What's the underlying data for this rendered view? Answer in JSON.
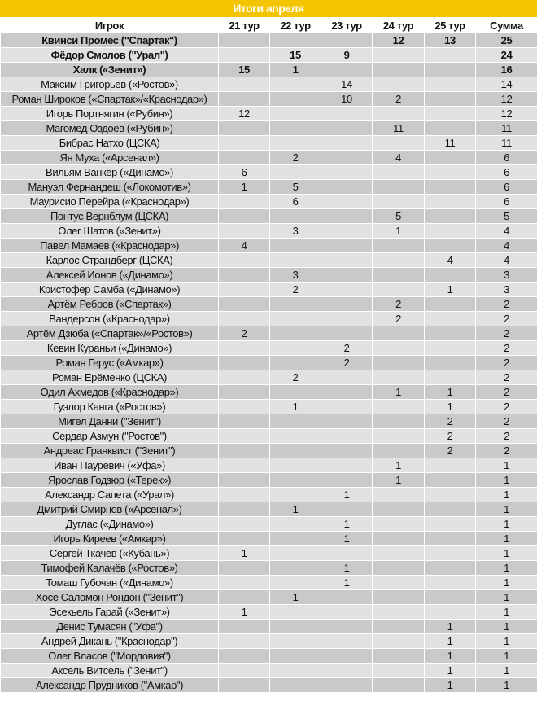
{
  "title": "Итоги апреля",
  "columns": [
    "Игрок",
    "21 тур",
    "22 тур",
    "23 тур",
    "24 тур",
    "25 тур",
    "Сумма"
  ],
  "rows": [
    {
      "player": "Квинси Промес (\"Спартак\")",
      "r21": "",
      "r22": "",
      "r23": "",
      "r24": "12",
      "r25": "13",
      "total": "25",
      "bold": true
    },
    {
      "player": "Фёдор Смолов (\"Урал\")",
      "r21": "",
      "r22": "15",
      "r23": "9",
      "r24": "",
      "r25": "",
      "total": "24",
      "bold": true
    },
    {
      "player": "Халк («Зенит»)",
      "r21": "15",
      "r22": "1",
      "r23": "",
      "r24": "",
      "r25": "",
      "total": "16",
      "bold": true
    },
    {
      "player": "Максим Григорьев («Ростов»)",
      "r21": "",
      "r22": "",
      "r23": "14",
      "r24": "",
      "r25": "",
      "total": "14"
    },
    {
      "player": "Роман Широков («Спартак»/«Краснодар»)",
      "r21": "",
      "r22": "",
      "r23": "10",
      "r24": "2",
      "r25": "",
      "total": "12"
    },
    {
      "player": "Игорь Портнягин («Рубин»)",
      "r21": "12",
      "r22": "",
      "r23": "",
      "r24": "",
      "r25": "",
      "total": "12"
    },
    {
      "player": "Магомед Оздоев («Рубин»)",
      "r21": "",
      "r22": "",
      "r23": "",
      "r24": "11",
      "r25": "",
      "total": "11"
    },
    {
      "player": "Бибрас Натхо (ЦСКА)",
      "r21": "",
      "r22": "",
      "r23": "",
      "r24": "",
      "r25": "11",
      "total": "11"
    },
    {
      "player": "Ян Муха («Арсенал»)",
      "r21": "",
      "r22": "2",
      "r23": "",
      "r24": "4",
      "r25": "",
      "total": "6"
    },
    {
      "player": "Вильям Ванкёр («Динамо»)",
      "r21": "6",
      "r22": "",
      "r23": "",
      "r24": "",
      "r25": "",
      "total": "6"
    },
    {
      "player": "Мануэл Фернандеш («Локомотив»)",
      "r21": "1",
      "r22": "5",
      "r23": "",
      "r24": "",
      "r25": "",
      "total": "6"
    },
    {
      "player": "Маурисио Перейра («Краснодар»)",
      "r21": "",
      "r22": "6",
      "r23": "",
      "r24": "",
      "r25": "",
      "total": "6"
    },
    {
      "player": "Понтус Вернблум (ЦСКА)",
      "r21": "",
      "r22": "",
      "r23": "",
      "r24": "5",
      "r25": "",
      "total": "5"
    },
    {
      "player": "Олег Шатов («Зенит»)",
      "r21": "",
      "r22": "3",
      "r23": "",
      "r24": "1",
      "r25": "",
      "total": "4"
    },
    {
      "player": "Павел Мамаев («Краснодар»)",
      "r21": "4",
      "r22": "",
      "r23": "",
      "r24": "",
      "r25": "",
      "total": "4"
    },
    {
      "player": "Карлос Страндберг (ЦСКА)",
      "r21": "",
      "r22": "",
      "r23": "",
      "r24": "",
      "r25": "4",
      "total": "4"
    },
    {
      "player": "Алексей Ионов («Динамо»)",
      "r21": "",
      "r22": "3",
      "r23": "",
      "r24": "",
      "r25": "",
      "total": "3"
    },
    {
      "player": "Кристофер Самба («Динамо»)",
      "r21": "",
      "r22": "2",
      "r23": "",
      "r24": "",
      "r25": "1",
      "total": "3"
    },
    {
      "player": "Артём Ребров («Спартак»)",
      "r21": "",
      "r22": "",
      "r23": "",
      "r24": "2",
      "r25": "",
      "total": "2"
    },
    {
      "player": "Вандерсон («Краснодар»)",
      "r21": "",
      "r22": "",
      "r23": "",
      "r24": "2",
      "r25": "",
      "total": "2"
    },
    {
      "player": "Артём Дзюба («Спартак»/«Ростов»)",
      "r21": "2",
      "r22": "",
      "r23": "",
      "r24": "",
      "r25": "",
      "total": "2"
    },
    {
      "player": "Кевин Кураньи («Динамо»)",
      "r21": "",
      "r22": "",
      "r23": "2",
      "r24": "",
      "r25": "",
      "total": "2"
    },
    {
      "player": "Роман Герус («Амкар»)",
      "r21": "",
      "r22": "",
      "r23": "2",
      "r24": "",
      "r25": "",
      "total": "2"
    },
    {
      "player": "Роман Ерёменко (ЦСКА)",
      "r21": "",
      "r22": "2",
      "r23": "",
      "r24": "",
      "r25": "",
      "total": "2"
    },
    {
      "player": "Одил Ахмедов («Краснодар»)",
      "r21": "",
      "r22": "",
      "r23": "",
      "r24": "1",
      "r25": "1",
      "total": "2"
    },
    {
      "player": "Гуэлор Канга («Ростов»)",
      "r21": "",
      "r22": "1",
      "r23": "",
      "r24": "",
      "r25": "1",
      "total": "2"
    },
    {
      "player": "Мигел Данни (\"Зенит\")",
      "r21": "",
      "r22": "",
      "r23": "",
      "r24": "",
      "r25": "2",
      "total": "2"
    },
    {
      "player": "Сердар Азмун (\"Ростов\")",
      "r21": "",
      "r22": "",
      "r23": "",
      "r24": "",
      "r25": "2",
      "total": "2"
    },
    {
      "player": "Андреас Гранквист (\"Зенит\")",
      "r21": "",
      "r22": "",
      "r23": "",
      "r24": "",
      "r25": "2",
      "total": "2"
    },
    {
      "player": "Иван Пауревич («Уфа»)",
      "r21": "",
      "r22": "",
      "r23": "",
      "r24": "1",
      "r25": "",
      "total": "1"
    },
    {
      "player": "Ярослав Годзюр («Терек»)",
      "r21": "",
      "r22": "",
      "r23": "",
      "r24": "1",
      "r25": "",
      "total": "1"
    },
    {
      "player": "Александр Сапета («Урал»)",
      "r21": "",
      "r22": "",
      "r23": "1",
      "r24": "",
      "r25": "",
      "total": "1"
    },
    {
      "player": "Дмитрий Смирнов («Арсенал»)",
      "r21": "",
      "r22": "1",
      "r23": "",
      "r24": "",
      "r25": "",
      "total": "1"
    },
    {
      "player": "Дуглас («Динамо»)",
      "r21": "",
      "r22": "",
      "r23": "1",
      "r24": "",
      "r25": "",
      "total": "1"
    },
    {
      "player": "Игорь Киреев («Амкар»)",
      "r21": "",
      "r22": "",
      "r23": "1",
      "r24": "",
      "r25": "",
      "total": "1"
    },
    {
      "player": "Сергей Ткачёв («Кубань»)",
      "r21": "1",
      "r22": "",
      "r23": "",
      "r24": "",
      "r25": "",
      "total": "1"
    },
    {
      "player": "Тимофей Калачёв («Ростов»)",
      "r21": "",
      "r22": "",
      "r23": "1",
      "r24": "",
      "r25": "",
      "total": "1"
    },
    {
      "player": "Томаш Губочан («Динамо»)",
      "r21": "",
      "r22": "",
      "r23": "1",
      "r24": "",
      "r25": "",
      "total": "1"
    },
    {
      "player": "Хосе Саломон Рондон (\"Зенит\")",
      "r21": "",
      "r22": "1",
      "r23": "",
      "r24": "",
      "r25": "",
      "total": "1"
    },
    {
      "player": "Эсекьель Гарай («Зенит»)",
      "r21": "1",
      "r22": "",
      "r23": "",
      "r24": "",
      "r25": "",
      "total": "1"
    },
    {
      "player": "Денис Тумасян (\"Уфа\")",
      "r21": "",
      "r22": "",
      "r23": "",
      "r24": "",
      "r25": "1",
      "total": "1"
    },
    {
      "player": "Андрей Дикань (\"Краснодар\")",
      "r21": "",
      "r22": "",
      "r23": "",
      "r24": "",
      "r25": "1",
      "total": "1"
    },
    {
      "player": "Олег Власов (\"Мордовия\")",
      "r21": "",
      "r22": "",
      "r23": "",
      "r24": "",
      "r25": "1",
      "total": "1"
    },
    {
      "player": "Аксель Витсель (\"Зенит\")",
      "r21": "",
      "r22": "",
      "r23": "",
      "r24": "",
      "r25": "1",
      "total": "1"
    },
    {
      "player": "Александр Прудников (\"Амкар\")",
      "r21": "",
      "r22": "",
      "r23": "",
      "r24": "",
      "r25": "1",
      "total": "1"
    }
  ],
  "colors": {
    "title_bg": "#f5c400",
    "row_dark": "#c9c9c9",
    "row_light": "#e1e1e1"
  }
}
